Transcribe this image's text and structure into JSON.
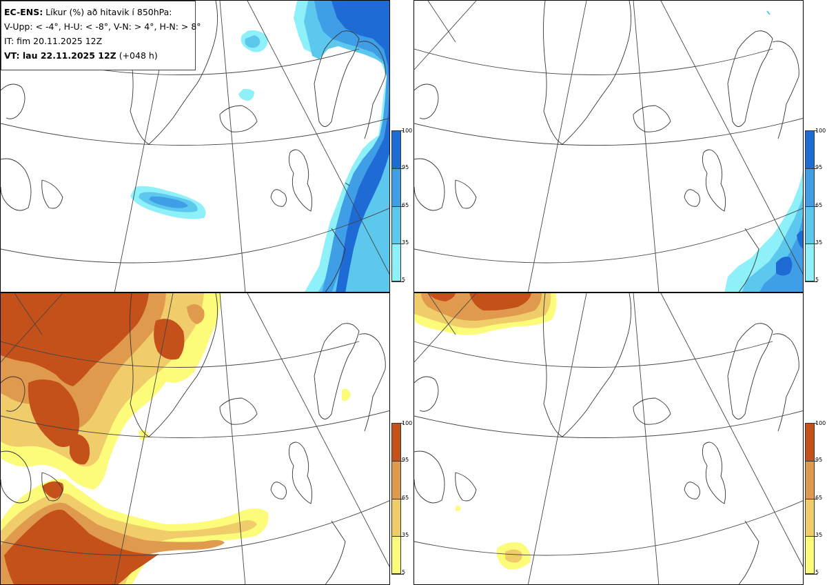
{
  "header": {
    "product": "EC-ENS:",
    "title_rest": " Líkur (%) að hitavik í 850hPa:",
    "thresholds": "V-Upp: < -4°, H-U: < -8°, V-N: > 4°, H-N: > 8°",
    "initial_time": "IT: fim 20.11.2025 12Z",
    "valid_time_label": "VT: lau 22.11.2025 12Z",
    "lead_time": " (+048 h)"
  },
  "panels": [
    {
      "id": "tl",
      "quadrant": "top-left",
      "condition": "V-Upp",
      "palette": "cold"
    },
    {
      "id": "tr",
      "quadrant": "top-right",
      "condition": "H-U",
      "palette": "cold"
    },
    {
      "id": "bl",
      "quadrant": "bottom-left",
      "condition": "V-N",
      "palette": "warm"
    },
    {
      "id": "br",
      "quadrant": "bottom-right",
      "condition": "H-N",
      "palette": "warm"
    }
  ],
  "colorbars": {
    "cold": {
      "ticks": [
        "100",
        "95",
        "65",
        "35",
        "5"
      ],
      "colors": [
        "#1f6bd6",
        "#3f9ee6",
        "#5cc8ee",
        "#8ef0f8"
      ]
    },
    "warm": {
      "ticks": [
        "100",
        "95",
        "65",
        "35",
        "5"
      ],
      "colors": [
        "#c4501a",
        "#df9a4e",
        "#f0cd6a",
        "#fcfc7a"
      ]
    }
  },
  "colors": {
    "coastline": "#333333",
    "graticule": "#444444",
    "border": "#000000"
  }
}
